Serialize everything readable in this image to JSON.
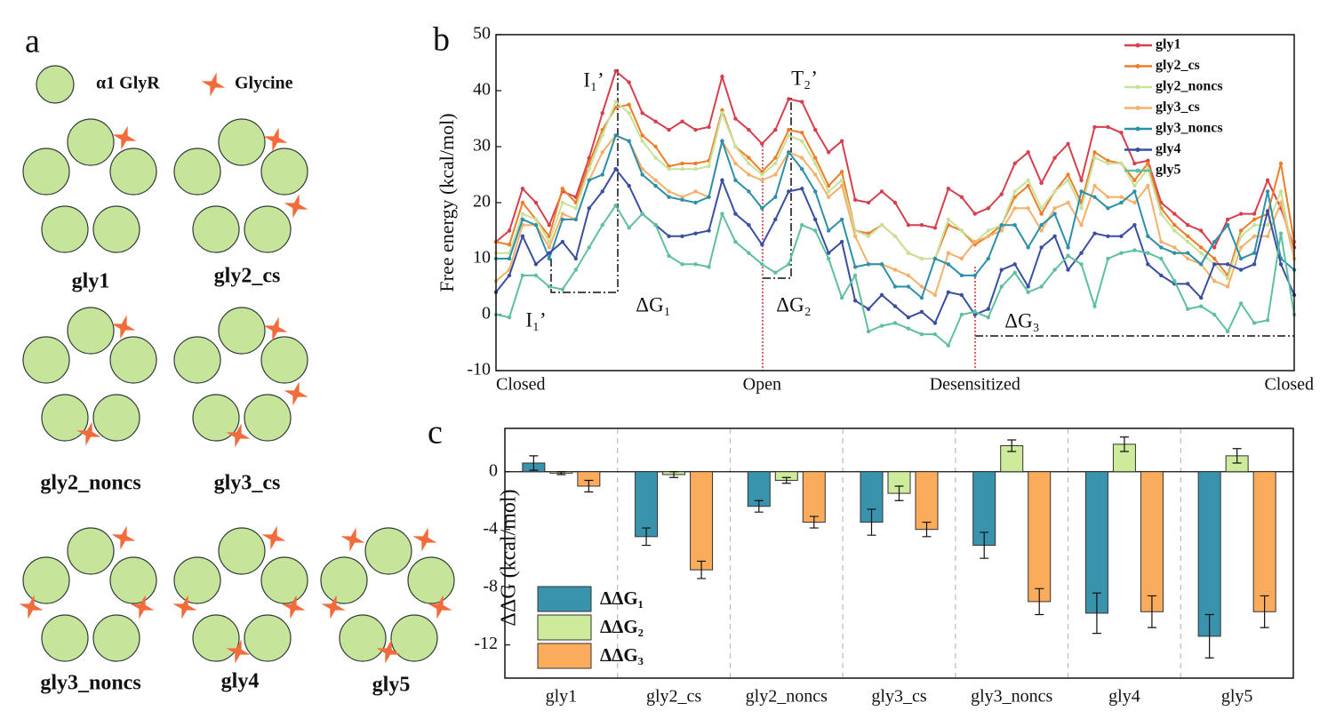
{
  "panel_a": {
    "label": "a",
    "legend": {
      "receptor": "α1 GlyR",
      "ligand": "Glycine"
    },
    "configurations": [
      "gly1",
      "gly2_cs",
      "gly2_noncs",
      "gly3_cs",
      "gly3_noncs",
      "gly4",
      "gly5"
    ]
  },
  "chart_data": [
    {
      "type": "line",
      "panel_label": "b",
      "y_label": "Free energy (kcal/mol)",
      "categories": [
        "Closed",
        null,
        null,
        null,
        null,
        null,
        null,
        null,
        null,
        null,
        null,
        null,
        null,
        null,
        null,
        null,
        null,
        null,
        null,
        null,
        "Open",
        null,
        null,
        null,
        null,
        null,
        null,
        null,
        null,
        null,
        null,
        null,
        null,
        null,
        null,
        null,
        "Desensitized",
        null,
        null,
        null,
        null,
        null,
        null,
        null,
        null,
        null,
        null,
        null,
        null,
        null,
        null,
        null,
        null,
        null,
        null,
        null,
        null,
        null,
        null,
        null,
        "Closed"
      ],
      "ylim": [
        -10,
        50
      ],
      "yticks": [
        -10,
        0,
        10,
        20,
        30,
        40,
        50
      ],
      "legend_position": "upper right",
      "annotations": [
        "I₁’",
        "T₂’",
        "ΔG₁",
        "ΔG₂",
        "ΔG₃",
        "I₁’"
      ],
      "series": [
        {
          "name": "gly1",
          "color": "#d6404e",
          "values": [
            13,
            15,
            22.5,
            20,
            16,
            22,
            21,
            28,
            36,
            43.5,
            41.5,
            36,
            34.5,
            33,
            34.5,
            33,
            33.5,
            42.5,
            35,
            33,
            30.5,
            33,
            38.5,
            38,
            33,
            29,
            31,
            20.5,
            20,
            22,
            20,
            16,
            16,
            15.5,
            22.5,
            21,
            18,
            19,
            21.5,
            27,
            29,
            23.5,
            28,
            30.5,
            24,
            33.5,
            33.5,
            32.5,
            27,
            27.5,
            20,
            18,
            16,
            15,
            12,
            17,
            18,
            18,
            24,
            19,
            12
          ]
        },
        {
          "name": "gly2_cs",
          "color": "#ee7d2a",
          "values": [
            13,
            12.5,
            20,
            17,
            14,
            22.5,
            20,
            27,
            33,
            37,
            37.5,
            32,
            30,
            26.5,
            27,
            27,
            27.5,
            36.5,
            30,
            28,
            25.5,
            28,
            33,
            32.5,
            28,
            23,
            25.5,
            15,
            14.5,
            16,
            14,
            11,
            10,
            10,
            16,
            15,
            12.5,
            14,
            16,
            21,
            23,
            18,
            22,
            25,
            20,
            29,
            27.5,
            27,
            24,
            27,
            19,
            16,
            14,
            12,
            10,
            7,
            15,
            17,
            18,
            27,
            13
          ]
        },
        {
          "name": "gly2_noncs",
          "color": "#c9e29a",
          "values": [
            11,
            11,
            18,
            17,
            13,
            20,
            19,
            26,
            32,
            38,
            36,
            31,
            28,
            26,
            26,
            26,
            26.5,
            36,
            30,
            27,
            25,
            27,
            32,
            31,
            27,
            22,
            24,
            15,
            14,
            16,
            14,
            11,
            10,
            10,
            17,
            15,
            13,
            15,
            16,
            22,
            24,
            19,
            22,
            24,
            19,
            28,
            27,
            27,
            23,
            26,
            18,
            15,
            13,
            11,
            9,
            6.5,
            14,
            16,
            16,
            22,
            10
          ]
        },
        {
          "name": "gly3_cs",
          "color": "#f5b06a",
          "values": [
            6,
            8,
            16,
            16,
            12,
            18,
            17,
            24,
            29,
            32,
            31,
            26,
            24,
            22,
            21,
            22,
            21,
            31,
            27,
            25,
            24,
            25,
            29,
            28,
            25,
            21,
            23,
            14,
            9,
            9,
            8,
            7,
            5,
            3.5,
            11,
            10,
            13,
            14,
            15,
            19,
            19,
            15,
            19,
            20,
            16,
            23,
            21,
            21,
            20,
            23,
            13,
            12,
            10,
            9,
            6,
            5,
            12,
            14,
            14,
            20,
            10
          ]
        },
        {
          "name": "gly3_noncs",
          "color": "#2e8fa8",
          "values": [
            10,
            10,
            17,
            16,
            10,
            17,
            17,
            24,
            25,
            32,
            31,
            25,
            23,
            21,
            20.5,
            20,
            21,
            31,
            24,
            22,
            19,
            21,
            29,
            26,
            22,
            15,
            17,
            8.5,
            9,
            9,
            5,
            5,
            3,
            10,
            9,
            7,
            7,
            10,
            16,
            16,
            12,
            16,
            18,
            12,
            22,
            21,
            19,
            20,
            22,
            14,
            12,
            11,
            11,
            9,
            13,
            16,
            10,
            11,
            22,
            10,
            8
          ]
        },
        {
          "name": "gly4",
          "color": "#3a4fa0",
          "values": [
            4,
            7,
            14,
            9,
            11,
            13,
            10,
            19,
            22,
            26,
            23,
            18,
            16,
            14,
            14,
            14.5,
            15,
            24,
            18,
            16,
            12.5,
            17,
            22,
            22.5,
            17,
            11,
            13,
            2.5,
            1,
            3.5,
            1.5,
            -0.5,
            0.5,
            -1.5,
            4,
            3.5,
            0,
            1,
            8,
            9,
            5,
            12,
            14,
            8,
            11,
            14.5,
            14,
            14,
            16,
            9,
            7,
            5.5,
            5.5,
            3,
            9,
            9,
            8,
            9,
            18.5,
            9,
            3.5
          ]
        },
        {
          "name": "gly5",
          "color": "#5fbfa0",
          "values": [
            0,
            -0.5,
            7,
            7,
            5,
            4.5,
            8,
            12,
            16,
            19.5,
            15.5,
            18,
            16,
            10.5,
            9,
            9,
            8.5,
            18,
            13,
            11,
            9,
            7.5,
            9,
            16,
            15,
            10,
            3,
            7,
            -3,
            -2,
            -1.5,
            -2.5,
            -3.5,
            -3.5,
            -5.5,
            0,
            0.5,
            -0.5,
            5,
            7.5,
            4,
            5,
            8,
            10.5,
            9,
            1.5,
            10,
            11,
            11.5,
            11,
            10,
            6,
            1,
            1.5,
            0,
            -3,
            2,
            -1.5,
            -1,
            14.5,
            0
          ]
        }
      ]
    },
    {
      "type": "bar",
      "panel_label": "c",
      "y_label": "ΔΔG (kcal/mol)",
      "categories": [
        "gly1",
        "gly2_cs",
        "gly2_noncs",
        "gly3_cs",
        "gly3_noncs",
        "gly4",
        "gly5"
      ],
      "ylim": [
        -14.3,
        3
      ],
      "yticks": [
        -12,
        -8,
        -4,
        0
      ],
      "legend_position": "lower left",
      "category_separators": true,
      "series": [
        {
          "name": "ΔΔG₁",
          "color": "#3a93ad",
          "values": [
            0.6,
            -4.5,
            -2.4,
            -3.5,
            -5.1,
            -9.8,
            -11.4
          ],
          "errors": [
            0.5,
            0.6,
            0.4,
            0.9,
            0.9,
            1.4,
            1.5
          ]
        },
        {
          "name": "ΔΔG₂",
          "color": "#cdeb9b",
          "values": [
            -0.1,
            -0.2,
            -0.6,
            -1.5,
            1.8,
            1.9,
            1.1
          ],
          "errors": [
            0.1,
            0.2,
            0.2,
            0.5,
            0.4,
            0.5,
            0.5
          ]
        },
        {
          "name": "ΔΔG₃",
          "color": "#fbab5c",
          "values": [
            -1.0,
            -6.8,
            -3.5,
            -4.0,
            -9.0,
            -9.7,
            -9.7
          ],
          "errors": [
            0.4,
            0.6,
            0.4,
            0.5,
            0.9,
            1.1,
            1.1
          ]
        }
      ]
    }
  ]
}
